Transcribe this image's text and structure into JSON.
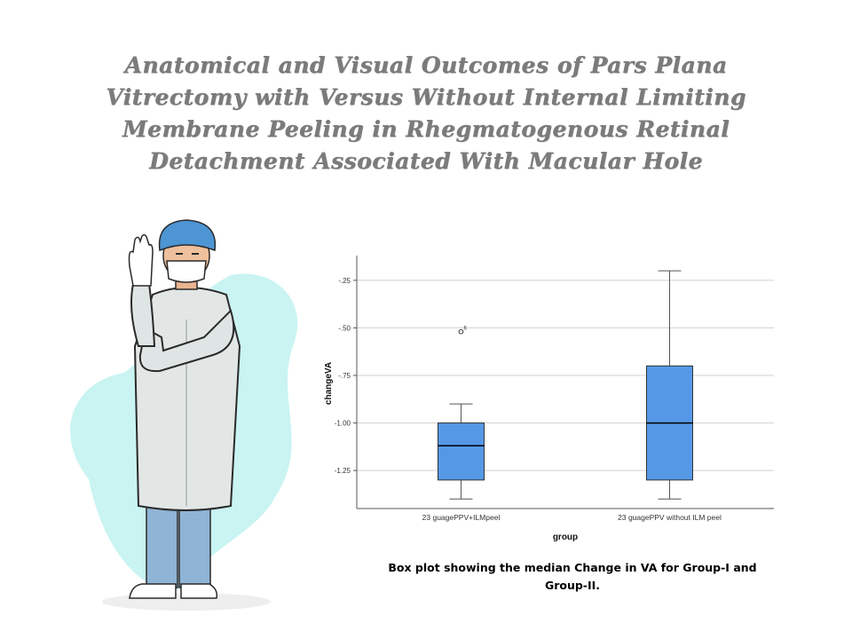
{
  "slide": {
    "title": "Anatomical and Visual Outcomes of Pars Plana\nVitrectomy with Versus Without Internal Limiting\nMembrane Peeling in Rhegmatogenous Retinal\nDetachment Associated With Macular Hole",
    "caption": "Box plot showing the median Change in VA for Group-I and Group-II."
  },
  "illustration": {
    "icon": "surgeon-with-gloves-icon"
  },
  "chart_data": {
    "type": "boxplot",
    "xlabel": "group",
    "ylabel": "changeVA",
    "ylim": [
      -1.45,
      -0.12
    ],
    "yticks": [
      {
        "value": -0.25,
        "label": "-.25"
      },
      {
        "value": -0.5,
        "label": "-.50"
      },
      {
        "value": -0.75,
        "label": "-.75"
      },
      {
        "value": -1.0,
        "label": "-1.00"
      },
      {
        "value": -1.25,
        "label": "-1.25"
      }
    ],
    "grid": true,
    "box_color": "#5599e6",
    "categories": [
      "23 guagePPV+ILMpeel",
      "23 guagePPV without ILM peel"
    ],
    "boxes": [
      {
        "min": -1.4,
        "q1": -1.3,
        "median": -1.12,
        "q3": -1.0,
        "max": -0.9,
        "outliers": [
          {
            "value": -0.52,
            "label": "6"
          }
        ]
      },
      {
        "min": -1.4,
        "q1": -1.3,
        "median": -1.0,
        "q3": -0.7,
        "max": -0.2,
        "outliers": []
      }
    ]
  }
}
